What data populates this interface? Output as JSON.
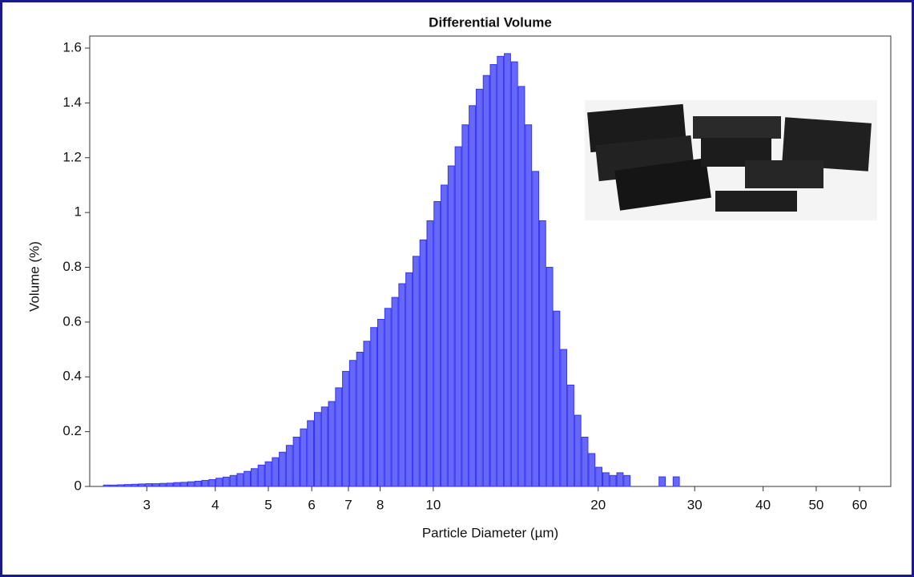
{
  "chart_data": {
    "type": "histogram",
    "title": "Differential Volume",
    "x_label": "Particle Diameter (µm)",
    "y_label": "Volume (%)",
    "x_scale": "log",
    "color": "#3535f5",
    "bins": [
      2.5,
      2.575,
      2.652,
      2.732,
      2.814,
      2.898,
      2.985,
      3.075,
      3.167,
      3.262,
      3.36,
      3.461,
      3.564,
      3.671,
      3.781,
      3.895,
      4.012,
      4.132,
      4.256,
      4.384,
      4.515,
      4.651,
      4.79,
      4.934,
      5.082,
      5.234,
      5.391,
      5.553,
      5.72,
      5.891,
      6.068,
      6.25,
      6.437,
      6.631,
      6.829,
      7.034,
      7.245,
      7.463,
      7.687,
      7.917,
      8.155,
      8.4,
      8.652,
      8.911,
      9.179,
      9.454,
      9.738,
      10.03,
      10.331,
      10.641,
      10.96,
      11.289,
      11.627,
      11.976,
      12.336,
      12.706,
      13.087,
      13.48,
      13.884,
      14.3,
      14.729,
      15.171,
      15.627,
      16.095,
      16.578,
      17.076,
      17.588,
      18.116,
      18.659,
      19.219,
      19.795,
      20.389,
      21.001,
      21.631,
      22.28,
      22.948,
      23.637,
      24.346,
      25.076,
      25.828,
      26.603,
      27.401,
      28.223
    ],
    "values": [
      0.005,
      0.005,
      0.006,
      0.007,
      0.008,
      0.009,
      0.01,
      0.01,
      0.011,
      0.012,
      0.014,
      0.015,
      0.017,
      0.019,
      0.022,
      0.025,
      0.03,
      0.034,
      0.04,
      0.047,
      0.055,
      0.065,
      0.078,
      0.09,
      0.105,
      0.125,
      0.15,
      0.18,
      0.21,
      0.24,
      0.27,
      0.29,
      0.31,
      0.36,
      0.42,
      0.46,
      0.49,
      0.53,
      0.58,
      0.61,
      0.65,
      0.69,
      0.74,
      0.78,
      0.84,
      0.9,
      0.97,
      1.04,
      1.1,
      1.17,
      1.24,
      1.32,
      1.39,
      1.45,
      1.5,
      1.54,
      1.57,
      1.58,
      1.55,
      1.46,
      1.32,
      1.15,
      0.97,
      0.8,
      0.64,
      0.5,
      0.37,
      0.26,
      0.18,
      0.12,
      0.07,
      0.05,
      0.04,
      0.05,
      0.04,
      0,
      0,
      0,
      0,
      0.035,
      0,
      0.035
    ],
    "xlim": [
      2.36,
      68.4
    ],
    "xticks": [
      3,
      4,
      5,
      6,
      7,
      8,
      10,
      20,
      30,
      40,
      50,
      60
    ],
    "ylim": [
      0,
      1.644
    ],
    "yticks": [
      0,
      0.2,
      0.4,
      0.6,
      0.8,
      1,
      1.2,
      1.4,
      1.6
    ]
  }
}
